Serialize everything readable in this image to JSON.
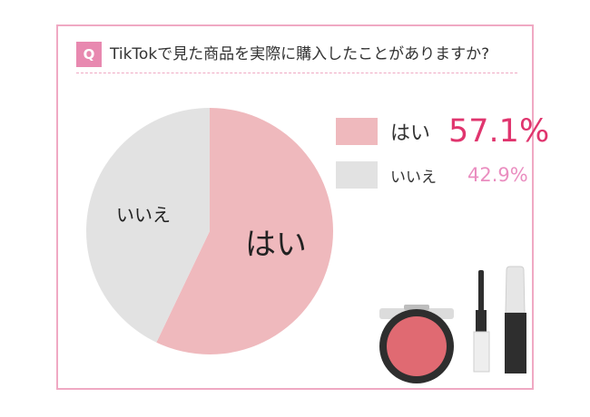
{
  "question": {
    "badge": "Q",
    "text": "TikTokで見た商品を実際に購入したことがありますか?"
  },
  "chart_data": {
    "type": "pie",
    "title": "TikTokで見た商品を実際に購入したことがありますか?",
    "slices": [
      {
        "label": "はい",
        "value": 57.1,
        "value_text": "57.1%",
        "color": "#efb9bd",
        "value_color": "#e0356e"
      },
      {
        "label": "いいえ",
        "value": 42.9,
        "value_text": "42.9%",
        "color": "#e2e2e2",
        "value_color": "#ea8ec0"
      }
    ],
    "legend_position": "right"
  },
  "colors": {
    "frame": "#f0a9c3",
    "accent": "#e889b0"
  },
  "illustration": {
    "items": [
      "blush-compact-icon",
      "mascara-wand-icon",
      "mascara-tube-icon"
    ]
  }
}
